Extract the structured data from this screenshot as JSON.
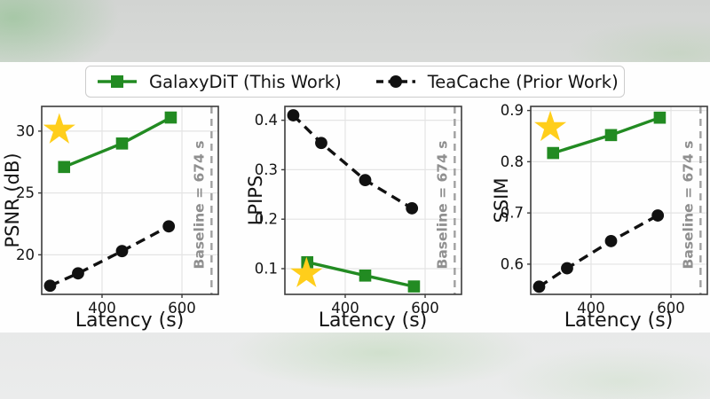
{
  "figure": {
    "legend": {
      "items": [
        {
          "label": "GalaxyDiT (This Work)",
          "color": "#228B22",
          "marker": "square",
          "line_style": "solid"
        },
        {
          "label": "TeaCache (Prior Work)",
          "color": "#111111",
          "marker": "circle",
          "line_style": "dashed"
        }
      ]
    },
    "colors": {
      "galaxydit_green": "#228B22",
      "teacache_black": "#111111",
      "baseline_line_gray": "#a0a0a0",
      "baseline_text_gray": "#8f8f8f",
      "star_gold": "#FFCE1B",
      "grid": "#e4e4e4",
      "spine": "#3c3c3c"
    }
  },
  "chart_data": [
    {
      "type": "line",
      "title": "",
      "xlabel": "Latency (s)",
      "ylabel": "PSNR (dB)",
      "xlim": [
        249,
        691
      ],
      "ylim": [
        16.8,
        32.0
      ],
      "xticks": [
        400,
        600
      ],
      "yticks": [
        20,
        25,
        30
      ],
      "grid": true,
      "baseline": {
        "x": 674,
        "label": "Baseline = 674 s"
      },
      "star": {
        "x": 293,
        "y": 30.1
      },
      "series": [
        {
          "name": "GalaxyDiT (This Work)",
          "color": "#228B22",
          "marker": "square",
          "line_style": "solid",
          "x": [
            305,
            450,
            572
          ],
          "y": [
            27.1,
            29.0,
            31.1
          ]
        },
        {
          "name": "TeaCache (Prior Work)",
          "color": "#111111",
          "marker": "circle",
          "line_style": "dashed",
          "x": [
            270,
            340,
            450,
            567
          ],
          "y": [
            17.5,
            18.5,
            20.3,
            22.3
          ]
        }
      ]
    },
    {
      "type": "line",
      "title": "",
      "xlabel": "Latency (s)",
      "ylabel": "LPIPS",
      "xlim": [
        249,
        691
      ],
      "ylim": [
        0.048,
        0.428
      ],
      "xticks": [
        400,
        600
      ],
      "yticks": [
        0.1,
        0.2,
        0.3,
        0.4
      ],
      "grid": true,
      "baseline": {
        "x": 674,
        "label": "Baseline = 674 s"
      },
      "star": {
        "x": 303,
        "y": 0.09
      },
      "series": [
        {
          "name": "GalaxyDiT (This Work)",
          "color": "#228B22",
          "marker": "square",
          "line_style": "solid",
          "x": [
            305,
            450,
            572
          ],
          "y": [
            0.113,
            0.086,
            0.064
          ]
        },
        {
          "name": "TeaCache (Prior Work)",
          "color": "#111111",
          "marker": "circle",
          "line_style": "dashed",
          "x": [
            270,
            340,
            450,
            567
          ],
          "y": [
            0.41,
            0.354,
            0.279,
            0.222
          ]
        }
      ]
    },
    {
      "type": "line",
      "title": "",
      "xlabel": "Latency (s)",
      "ylabel": "SSIM",
      "xlim": [
        249,
        691
      ],
      "ylim": [
        0.541,
        0.908
      ],
      "xticks": [
        400,
        600
      ],
      "yticks": [
        0.6,
        0.7,
        0.8,
        0.9
      ],
      "grid": true,
      "baseline": {
        "x": 674,
        "label": "Baseline = 674 s"
      },
      "star": {
        "x": 298,
        "y": 0.867
      },
      "series": [
        {
          "name": "GalaxyDiT (This Work)",
          "color": "#228B22",
          "marker": "square",
          "line_style": "solid",
          "x": [
            305,
            450,
            572
          ],
          "y": [
            0.817,
            0.852,
            0.886
          ]
        },
        {
          "name": "TeaCache (Prior Work)",
          "color": "#111111",
          "marker": "circle",
          "line_style": "dashed",
          "x": [
            270,
            340,
            450,
            567
          ],
          "y": [
            0.556,
            0.592,
            0.645,
            0.695
          ]
        }
      ]
    }
  ]
}
